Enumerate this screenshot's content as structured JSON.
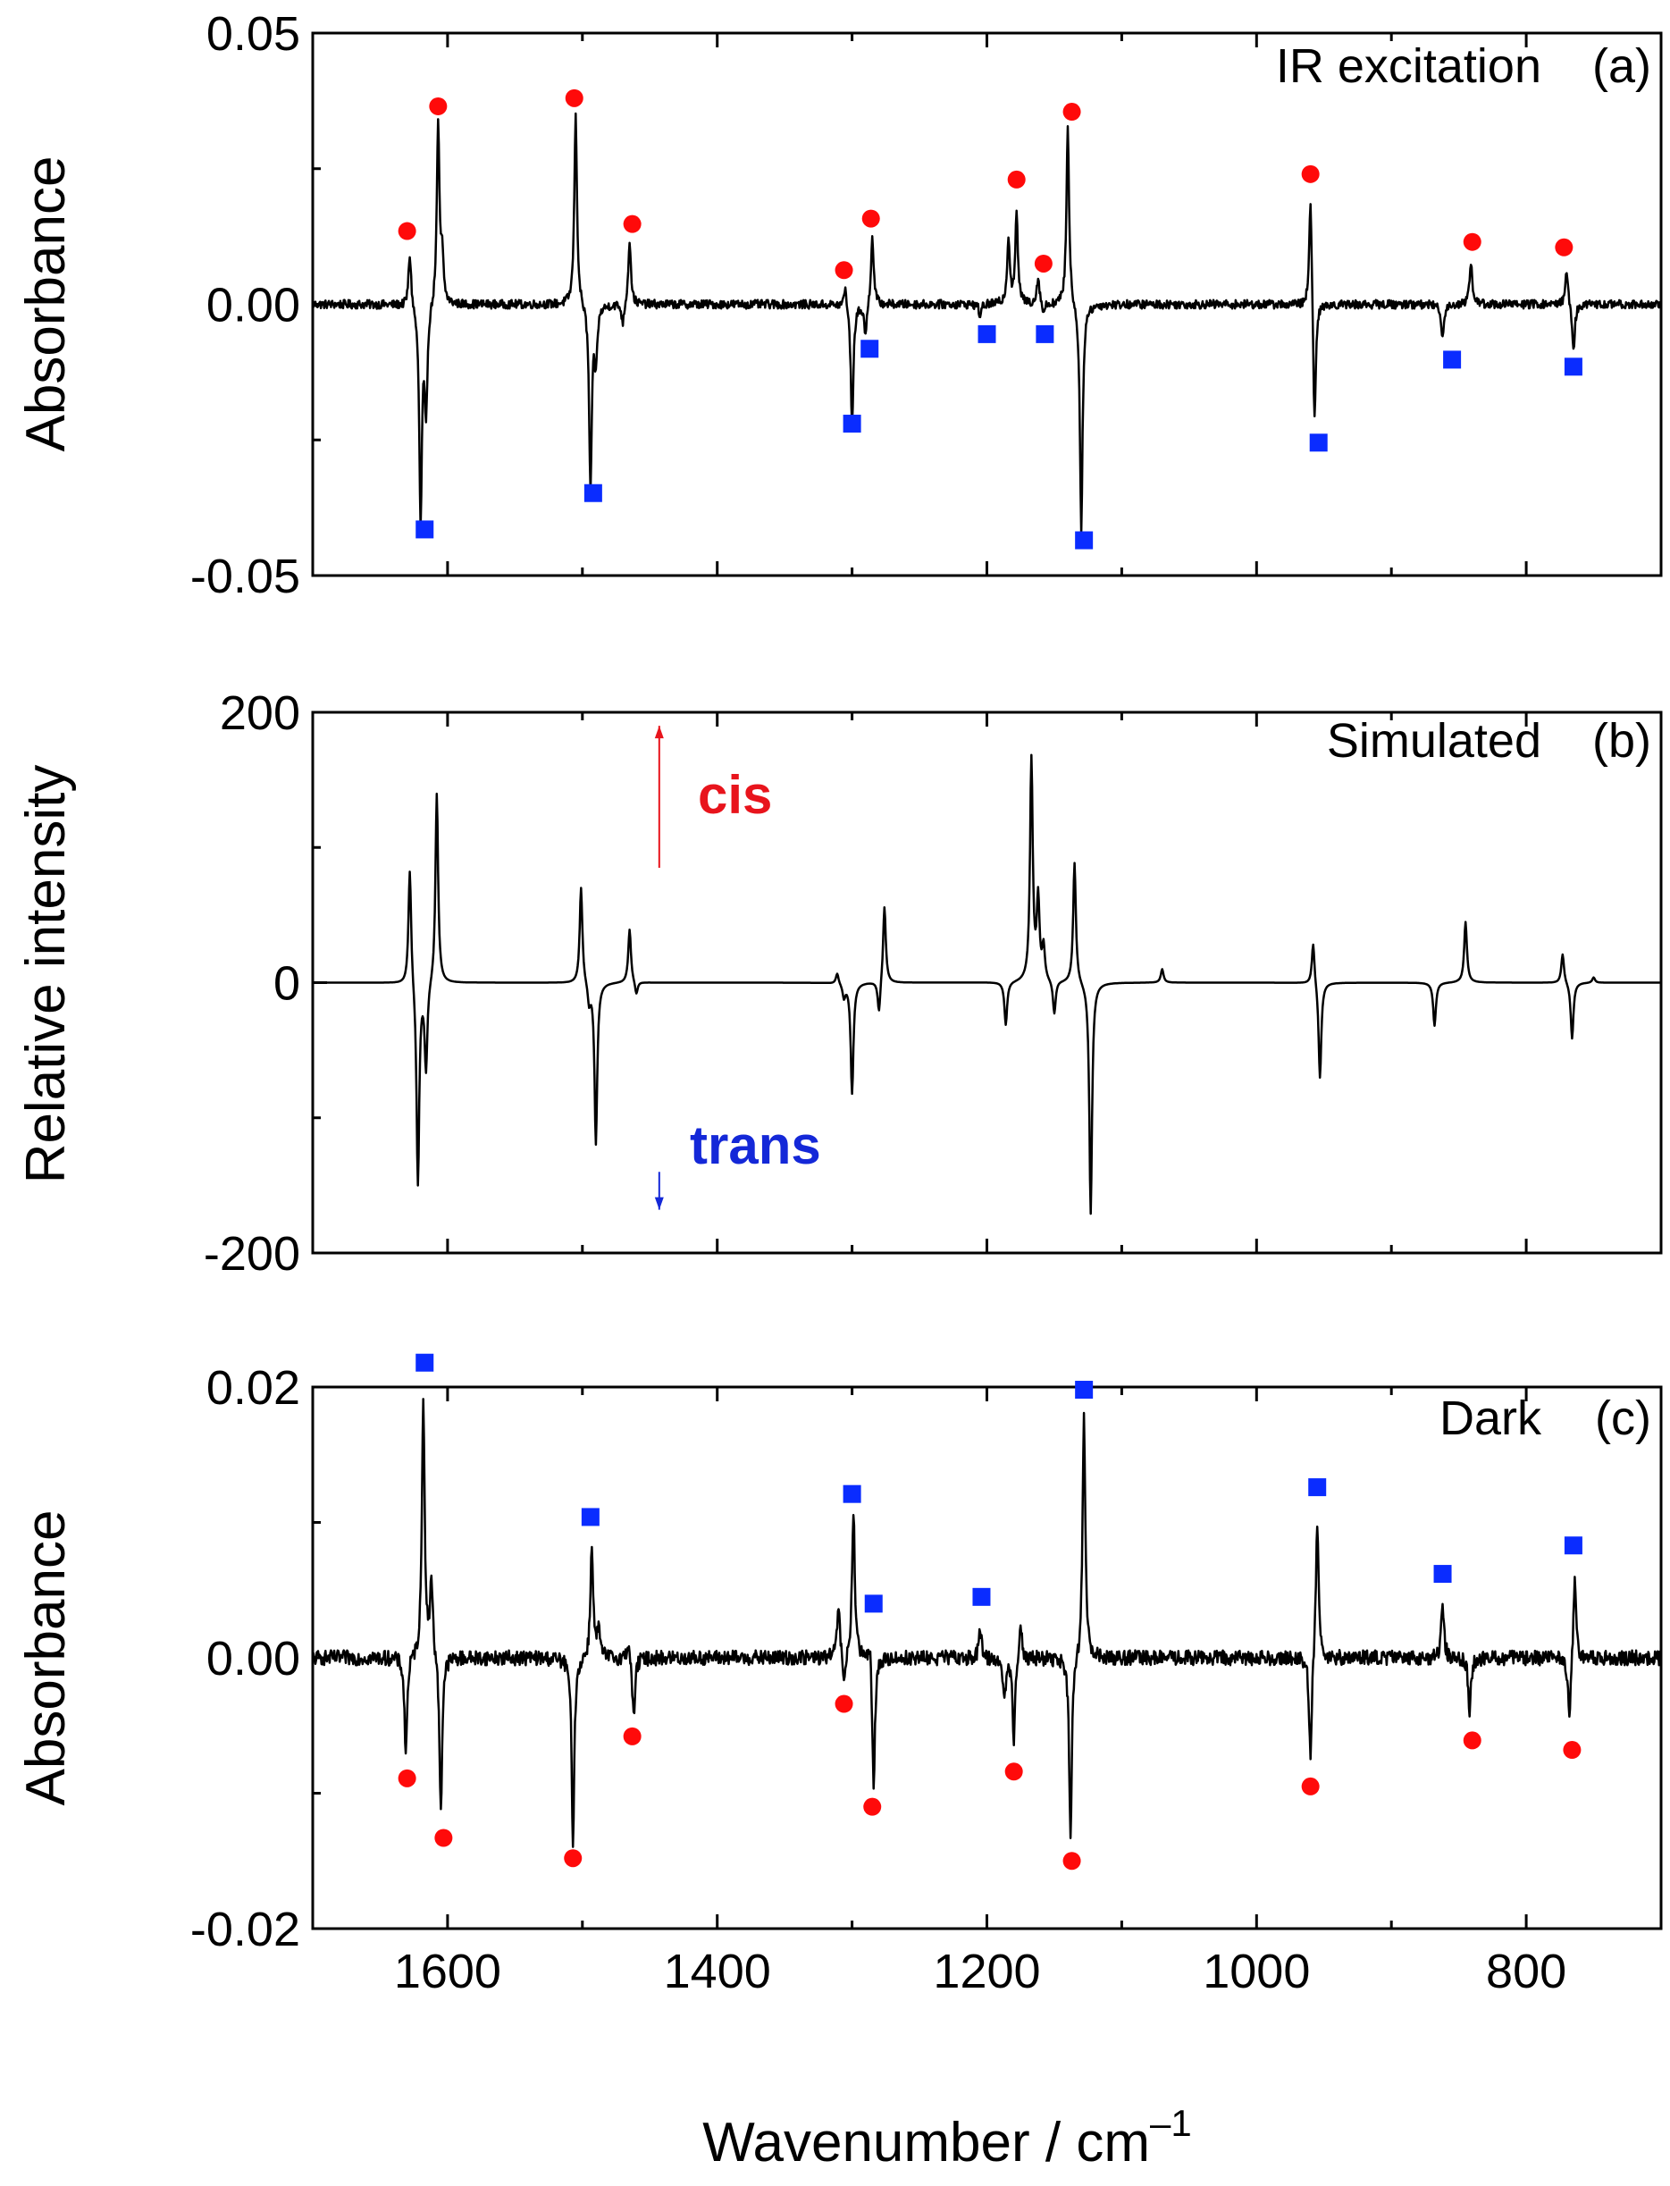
{
  "chart_data": [
    {
      "type": "line",
      "panel": "a",
      "title": "IR excitation",
      "panel_label": "(a)",
      "ylabel": "Absorbance",
      "ylim": [
        -0.05,
        0.05
      ],
      "yticks": [
        -0.05,
        0.0,
        0.05
      ],
      "ytick_labels": [
        "-0.05",
        "0.00",
        "0.05"
      ],
      "xlim": [
        1700,
        700
      ],
      "noise": 0.0008,
      "peaks": [
        {
          "x": 1628,
          "y": 0.01
        },
        {
          "x": 1620,
          "y": -0.04
        },
        {
          "x": 1616,
          "y": -0.02
        },
        {
          "x": 1607,
          "y": 0.033
        },
        {
          "x": 1604,
          "y": 0.008
        },
        {
          "x": 1505,
          "y": 0.035
        },
        {
          "x": 1494,
          "y": -0.034
        },
        {
          "x": 1490,
          "y": -0.01
        },
        {
          "x": 1465,
          "y": 0.012
        },
        {
          "x": 1470,
          "y": -0.004
        },
        {
          "x": 1305,
          "y": 0.004
        },
        {
          "x": 1300,
          "y": -0.022
        },
        {
          "x": 1290,
          "y": -0.006
        },
        {
          "x": 1285,
          "y": 0.013
        },
        {
          "x": 1205,
          "y": -0.002
        },
        {
          "x": 1184,
          "y": 0.012
        },
        {
          "x": 1178,
          "y": 0.016
        },
        {
          "x": 1162,
          "y": 0.005
        },
        {
          "x": 1158,
          "y": -0.002
        },
        {
          "x": 1140,
          "y": 0.033
        },
        {
          "x": 1130,
          "y": -0.042
        },
        {
          "x": 960,
          "y": 0.021
        },
        {
          "x": 957,
          "y": -0.023
        },
        {
          "x": 862,
          "y": -0.006
        },
        {
          "x": 841,
          "y": 0.008
        },
        {
          "x": 770,
          "y": 0.007
        },
        {
          "x": 765,
          "y": -0.009
        }
      ],
      "markers": {
        "red_circle": [
          [
            1630,
            0.0135
          ],
          [
            1607,
            0.0365
          ],
          [
            1506,
            0.038
          ],
          [
            1463,
            0.0148
          ],
          [
            1306,
            0.0063
          ],
          [
            1286,
            0.0158
          ],
          [
            1178,
            0.023
          ],
          [
            1158,
            0.0075
          ],
          [
            1137,
            0.0355
          ],
          [
            960,
            0.024
          ],
          [
            840,
            0.0115
          ],
          [
            772,
            0.0105
          ]
        ],
        "blue_square": [
          [
            1617,
            -0.0415
          ],
          [
            1492,
            -0.0348
          ],
          [
            1300,
            -0.022
          ],
          [
            1287,
            -0.0082
          ],
          [
            1200,
            -0.0055
          ],
          [
            1157,
            -0.0055
          ],
          [
            1128,
            -0.0435
          ],
          [
            954,
            -0.0255
          ],
          [
            855,
            -0.0102
          ],
          [
            765,
            -0.0115
          ]
        ]
      }
    },
    {
      "type": "line",
      "panel": "b",
      "title": "Simulated",
      "panel_label": "(b)",
      "ylabel": "Relative intensity",
      "ylim": [
        -200,
        200
      ],
      "yticks": [
        -200,
        0,
        200
      ],
      "ytick_labels": [
        "-200",
        "0",
        "200"
      ],
      "xlim": [
        1700,
        700
      ],
      "noise": 0,
      "annotations": [
        {
          "text": "cis",
          "direction": "up",
          "arrow_x": 1443,
          "arrow_from": 85,
          "arrow_to": 190
        },
        {
          "text": "trans",
          "direction": "down",
          "arrow_x": 1443,
          "arrow_from": -140,
          "arrow_to": -168
        }
      ],
      "peaks": [
        {
          "x": 1628,
          "y": 88
        },
        {
          "x": 1622,
          "y": -152
        },
        {
          "x": 1616,
          "y": -65
        },
        {
          "x": 1608,
          "y": 142
        },
        {
          "x": 1501,
          "y": 72
        },
        {
          "x": 1490,
          "y": -120
        },
        {
          "x": 1495,
          "y": -15
        },
        {
          "x": 1465,
          "y": 40
        },
        {
          "x": 1460,
          "y": -10
        },
        {
          "x": 1311,
          "y": 8
        },
        {
          "x": 1300,
          "y": -82
        },
        {
          "x": 1306,
          "y": -10
        },
        {
          "x": 1280,
          "y": -25
        },
        {
          "x": 1276,
          "y": 58
        },
        {
          "x": 1186,
          "y": -32
        },
        {
          "x": 1167,
          "y": 165
        },
        {
          "x": 1162,
          "y": 60
        },
        {
          "x": 1158,
          "y": 25
        },
        {
          "x": 1150,
          "y": -25
        },
        {
          "x": 1135,
          "y": 90
        },
        {
          "x": 1123,
          "y": -172
        },
        {
          "x": 1070,
          "y": 10
        },
        {
          "x": 958,
          "y": 32
        },
        {
          "x": 953,
          "y": -72
        },
        {
          "x": 868,
          "y": -32
        },
        {
          "x": 845,
          "y": 45
        },
        {
          "x": 773,
          "y": 22
        },
        {
          "x": 766,
          "y": -42
        },
        {
          "x": 750,
          "y": 4
        }
      ]
    },
    {
      "type": "line",
      "panel": "c",
      "title": "Dark",
      "panel_label": "(c)",
      "ylabel": "Absorbance",
      "ylim": [
        -0.02,
        0.02
      ],
      "yticks": [
        -0.02,
        0.0,
        0.02
      ],
      "ytick_labels": [
        "-0.02",
        "0.00",
        "0.02"
      ],
      "xlim": [
        1700,
        700
      ],
      "xlabel": "Wavenumber / cm",
      "xlabel_superscript": "–1",
      "xticks": [
        800,
        1000,
        1200,
        1400,
        1600
      ],
      "xtick_labels": [
        "800",
        "1000",
        "1200",
        "1400",
        "1600"
      ],
      "noise": 0.00055,
      "peaks": [
        {
          "x": 1631,
          "y": -0.0072
        },
        {
          "x": 1618,
          "y": 0.0195
        },
        {
          "x": 1612,
          "y": 0.006
        },
        {
          "x": 1605,
          "y": -0.0115
        },
        {
          "x": 1507,
          "y": -0.0135
        },
        {
          "x": 1493,
          "y": 0.0085
        },
        {
          "x": 1488,
          "y": 0.002
        },
        {
          "x": 1462,
          "y": -0.0045
        },
        {
          "x": 1466,
          "y": 0.0015
        },
        {
          "x": 1310,
          "y": 0.004
        },
        {
          "x": 1306,
          "y": -0.0025
        },
        {
          "x": 1299,
          "y": 0.011
        },
        {
          "x": 1284,
          "y": -0.0095
        },
        {
          "x": 1287,
          "y": 0.002
        },
        {
          "x": 1205,
          "y": 0.002
        },
        {
          "x": 1187,
          "y": -0.003
        },
        {
          "x": 1180,
          "y": -0.006
        },
        {
          "x": 1175,
          "y": 0.003
        },
        {
          "x": 1138,
          "y": -0.0135
        },
        {
          "x": 1128,
          "y": 0.018
        },
        {
          "x": 960,
          "y": -0.008
        },
        {
          "x": 955,
          "y": 0.0105
        },
        {
          "x": 862,
          "y": 0.004
        },
        {
          "x": 842,
          "y": -0.004
        },
        {
          "x": 768,
          "y": -0.005
        },
        {
          "x": 764,
          "y": 0.006
        }
      ],
      "markers": {
        "red_circle": [
          [
            1630,
            -0.0089
          ],
          [
            1603,
            -0.0133
          ],
          [
            1507,
            -0.0148
          ],
          [
            1463,
            -0.0058
          ],
          [
            1306,
            -0.0034
          ],
          [
            1285,
            -0.011
          ],
          [
            1180,
            -0.0084
          ],
          [
            1137,
            -0.015
          ],
          [
            960,
            -0.0095
          ],
          [
            840,
            -0.0061
          ],
          [
            766,
            -0.0068
          ]
        ],
        "blue_square": [
          [
            1617,
            0.0218
          ],
          [
            1494,
            0.0104
          ],
          [
            1300,
            0.0121
          ],
          [
            1284,
            0.004
          ],
          [
            1204,
            0.0045
          ],
          [
            1128,
            0.0198
          ],
          [
            955,
            0.0126
          ],
          [
            862,
            0.0062
          ],
          [
            765,
            0.0083
          ]
        ]
      }
    }
  ],
  "colors": {
    "circle": "#ff0a0a",
    "square": "#0a2cff",
    "line": "#000000",
    "cis": "#e8141c",
    "trans": "#1428d8"
  }
}
